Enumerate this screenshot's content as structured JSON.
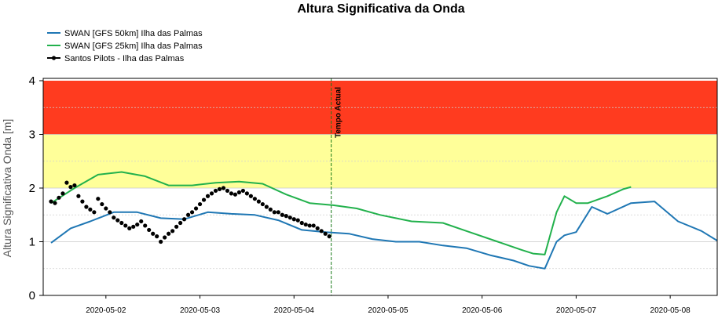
{
  "chart_data": {
    "type": "line",
    "title": "Altura Significativa da Onda",
    "xlabel": "",
    "ylabel": "Altura Significativa Onda [m]",
    "ylim": [
      0,
      4
    ],
    "xlim": [
      "2020-05-01T08:00",
      "2020-05-08T12:00"
    ],
    "yticks": [
      "0",
      "1",
      "2",
      "3",
      "4"
    ],
    "xticks": [
      "2020-05-02",
      "2020-05-03",
      "2020-05-04",
      "2020-05-05",
      "2020-05-06",
      "2020-05-07",
      "2020-05-08"
    ],
    "grid": true,
    "legend_position": "top-left",
    "bands": [
      {
        "from": 3,
        "to": 4,
        "color": "#ff3b1f"
      },
      {
        "from": 2,
        "to": 3,
        "color": "#ffff99"
      }
    ],
    "now_marker": {
      "x": "2020-05-04T09:30",
      "label": "Tempo Actual",
      "color": "#1a7a1a"
    },
    "series": [
      {
        "name": "SWAN [GFS 50km] Ilha das Palmas",
        "color": "#1f77b4",
        "style": "line",
        "x": [
          "2020-05-01T10:00",
          "2020-05-01T15:00",
          "2020-05-01T20:00",
          "2020-05-02T02:00",
          "2020-05-02T08:00",
          "2020-05-02T14:00",
          "2020-05-02T20:00",
          "2020-05-03T02:00",
          "2020-05-03T08:00",
          "2020-05-03T14:00",
          "2020-05-03T20:00",
          "2020-05-04T02:00",
          "2020-05-04T08:00",
          "2020-05-04T14:00",
          "2020-05-04T20:00",
          "2020-05-05T02:00",
          "2020-05-05T08:00",
          "2020-05-05T14:00",
          "2020-05-05T20:00",
          "2020-05-06T02:00",
          "2020-05-06T08:00",
          "2020-05-06T12:00",
          "2020-05-06T16:00",
          "2020-05-06T19:00",
          "2020-05-06T21:00",
          "2020-05-07T00:00",
          "2020-05-07T04:00",
          "2020-05-07T08:00",
          "2020-05-07T14:00",
          "2020-05-07T20:00",
          "2020-05-08T02:00",
          "2020-05-08T08:00",
          "2020-05-08T12:00"
        ],
        "values": [
          0.98,
          1.25,
          1.38,
          1.55,
          1.55,
          1.44,
          1.42,
          1.55,
          1.52,
          1.5,
          1.4,
          1.22,
          1.18,
          1.15,
          1.05,
          1.0,
          1.0,
          0.93,
          0.88,
          0.75,
          0.65,
          0.55,
          0.5,
          1.0,
          1.12,
          1.18,
          1.65,
          1.52,
          1.72,
          1.75,
          1.38,
          1.2,
          1.02
        ]
      },
      {
        "name": "SWAN [GFS 25km] Ilha das Palmas",
        "color": "#22b14c",
        "style": "line",
        "x": [
          "2020-05-01T10:00",
          "2020-05-01T16:00",
          "2020-05-01T22:00",
          "2020-05-02T04:00",
          "2020-05-02T10:00",
          "2020-05-02T16:00",
          "2020-05-02T22:00",
          "2020-05-03T04:00",
          "2020-05-03T10:00",
          "2020-05-03T16:00",
          "2020-05-03T22:00",
          "2020-05-04T04:00",
          "2020-05-04T10:00",
          "2020-05-04T16:00",
          "2020-05-04T22:00",
          "2020-05-05T06:00",
          "2020-05-05T14:00",
          "2020-05-05T20:00",
          "2020-05-06T04:00",
          "2020-05-06T10:00",
          "2020-05-06T13:00",
          "2020-05-06T16:00",
          "2020-05-06T19:00",
          "2020-05-06T21:00",
          "2020-05-07T00:00",
          "2020-05-07T03:00",
          "2020-05-07T08:00",
          "2020-05-07T12:00",
          "2020-05-07T14:00"
        ],
        "values": [
          1.72,
          2.0,
          2.25,
          2.3,
          2.22,
          2.05,
          2.05,
          2.1,
          2.12,
          2.08,
          1.88,
          1.72,
          1.68,
          1.62,
          1.5,
          1.38,
          1.35,
          1.2,
          1.0,
          0.85,
          0.78,
          0.76,
          1.55,
          1.85,
          1.72,
          1.72,
          1.85,
          1.98,
          2.02
        ]
      },
      {
        "name": "Santos Pilots - Ilha das Palmas",
        "color": "#000000",
        "style": "points",
        "x": [
          "2020-05-01T10:00",
          "2020-05-01T11:00",
          "2020-05-01T12:00",
          "2020-05-01T13:00",
          "2020-05-01T14:00",
          "2020-05-01T15:00",
          "2020-05-01T16:00",
          "2020-05-01T17:00",
          "2020-05-01T18:00",
          "2020-05-01T19:00",
          "2020-05-01T20:00",
          "2020-05-01T21:00",
          "2020-05-01T22:00",
          "2020-05-01T23:00",
          "2020-05-02T00:00",
          "2020-05-02T01:00",
          "2020-05-02T02:00",
          "2020-05-02T03:00",
          "2020-05-02T04:00",
          "2020-05-02T05:00",
          "2020-05-02T06:00",
          "2020-05-02T07:00",
          "2020-05-02T08:00",
          "2020-05-02T09:00",
          "2020-05-02T10:00",
          "2020-05-02T11:00",
          "2020-05-02T12:00",
          "2020-05-02T13:00",
          "2020-05-02T14:00",
          "2020-05-02T15:00",
          "2020-05-02T16:00",
          "2020-05-02T17:00",
          "2020-05-02T18:00",
          "2020-05-02T19:00",
          "2020-05-02T20:00",
          "2020-05-02T21:00",
          "2020-05-02T22:00",
          "2020-05-02T23:00",
          "2020-05-03T00:00",
          "2020-05-03T01:00",
          "2020-05-03T02:00",
          "2020-05-03T03:00",
          "2020-05-03T04:00",
          "2020-05-03T05:00",
          "2020-05-03T06:00",
          "2020-05-03T07:00",
          "2020-05-03T08:00",
          "2020-05-03T09:00",
          "2020-05-03T10:00",
          "2020-05-03T11:00",
          "2020-05-03T12:00",
          "2020-05-03T13:00",
          "2020-05-03T14:00",
          "2020-05-03T15:00",
          "2020-05-03T16:00",
          "2020-05-03T17:00",
          "2020-05-03T18:00",
          "2020-05-03T19:00",
          "2020-05-03T20:00",
          "2020-05-03T21:00",
          "2020-05-03T22:00",
          "2020-05-03T23:00",
          "2020-05-04T00:00",
          "2020-05-04T01:00",
          "2020-05-04T02:00",
          "2020-05-04T03:00",
          "2020-05-04T04:00",
          "2020-05-04T05:00",
          "2020-05-04T06:00",
          "2020-05-04T07:00",
          "2020-05-04T08:00",
          "2020-05-04T09:00"
        ],
        "values": [
          1.75,
          1.72,
          1.82,
          1.9,
          2.1,
          2.02,
          2.05,
          1.85,
          1.75,
          1.65,
          1.6,
          1.55,
          1.8,
          1.7,
          1.62,
          1.55,
          1.45,
          1.4,
          1.35,
          1.3,
          1.25,
          1.28,
          1.32,
          1.38,
          1.3,
          1.22,
          1.15,
          1.1,
          1.0,
          1.08,
          1.15,
          1.2,
          1.28,
          1.35,
          1.42,
          1.5,
          1.55,
          1.62,
          1.7,
          1.78,
          1.85,
          1.9,
          1.95,
          1.98,
          2.0,
          1.95,
          1.9,
          1.88,
          1.92,
          1.95,
          1.9,
          1.85,
          1.8,
          1.75,
          1.7,
          1.65,
          1.6,
          1.55,
          1.55,
          1.5,
          1.48,
          1.45,
          1.42,
          1.4,
          1.35,
          1.32,
          1.3,
          1.3,
          1.25,
          1.2,
          1.15,
          1.1
        ]
      }
    ]
  }
}
